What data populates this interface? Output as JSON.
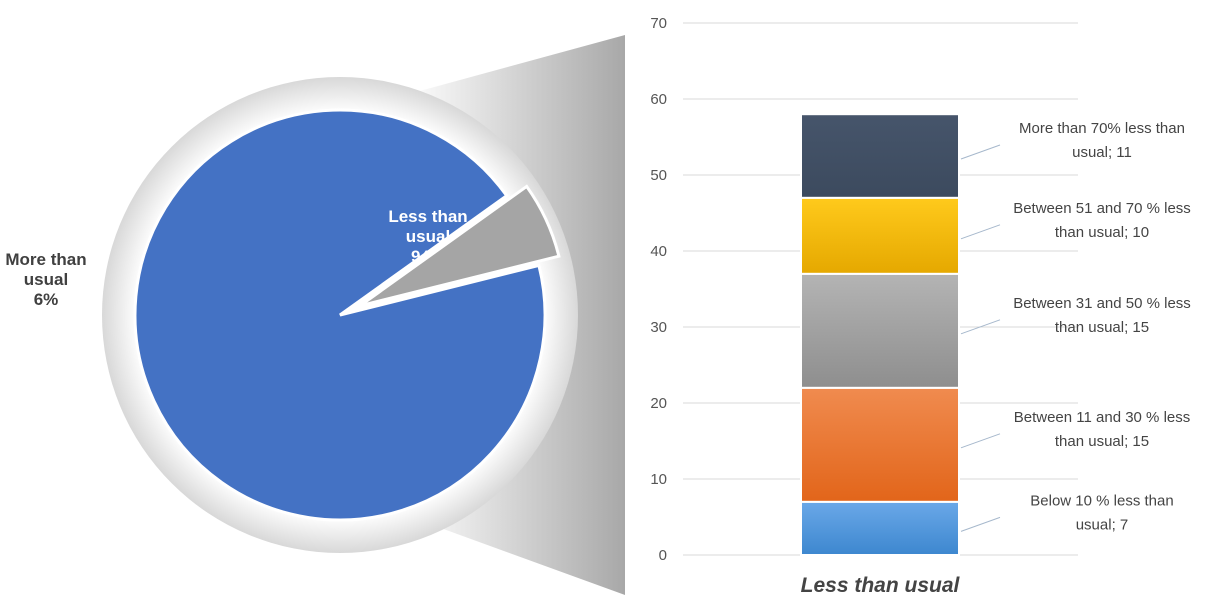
{
  "chart_data": [
    {
      "type": "pie",
      "slices": [
        {
          "label_lines": [
            "Less than",
            "usual",
            "94%"
          ],
          "value": 94,
          "color": "#4472C4"
        },
        {
          "label_lines": [
            "More than",
            "usual",
            "6%"
          ],
          "value": 6,
          "color": "#A5A5A5"
        }
      ]
    },
    {
      "type": "bar",
      "stacked": true,
      "categories": [
        "Less than usual"
      ],
      "ylim": [
        0,
        70
      ],
      "yticks": [
        "0",
        "10",
        "20",
        "30",
        "40",
        "50",
        "60",
        "70"
      ],
      "grid": true,
      "series": [
        {
          "value": 7,
          "color": "#5B9BD5",
          "label_lines": [
            "Below 10 % less than",
            "usual; 7"
          ]
        },
        {
          "value": 15,
          "color": "#ED7D31",
          "label_lines": [
            "Between 11 and 30 % less",
            "than usual; 15"
          ]
        },
        {
          "value": 15,
          "color": "#A5A5A5",
          "label_lines": [
            "Between 31 and 50 % less",
            "than usual; 15"
          ]
        },
        {
          "value": 10,
          "color": "#FFC000",
          "label_lines": [
            "Between 51 and 70 % less",
            "than usual; 10"
          ]
        },
        {
          "value": 11,
          "color": "#44546A",
          "label_lines": [
            "More than 70% less than",
            "usual; 11"
          ]
        }
      ]
    }
  ]
}
